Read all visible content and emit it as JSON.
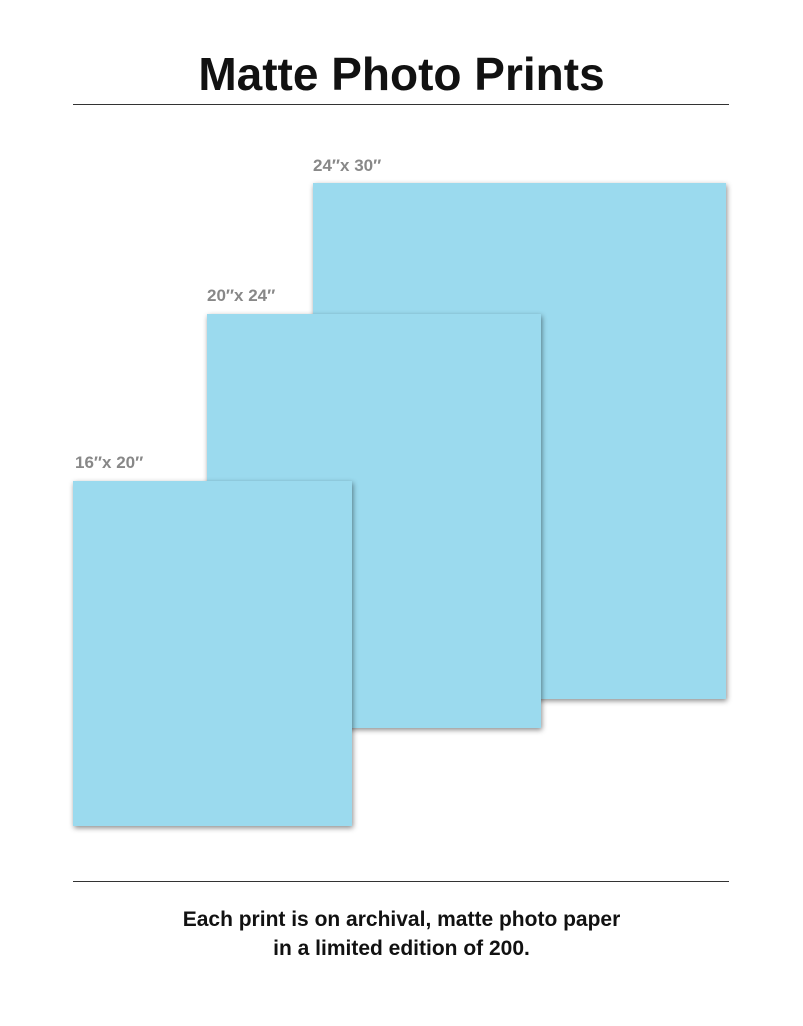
{
  "title": "Matte Photo Prints",
  "prints": [
    {
      "label": "24″x 30″",
      "color": "#9bdaee"
    },
    {
      "label": "20″x 24″",
      "color": "#9bdaee"
    },
    {
      "label": "16″x 20″",
      "color": "#9bdaee"
    }
  ],
  "footer": {
    "line1": "Each print is on archival, matte photo paper",
    "line2": "in a limited edition of 200."
  }
}
